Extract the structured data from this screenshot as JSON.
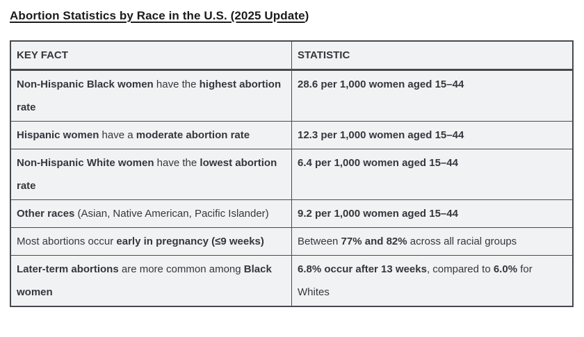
{
  "page": {
    "title_main": "Abortion Statistics by Race in the U.S. (2025 Update",
    "title_suffix": ")"
  },
  "colors": {
    "cell_background": "#f1f2f4",
    "border": "#47494d",
    "text": "#33373d",
    "title": "#1b1b1b"
  },
  "table": {
    "headers": [
      "KEY FACT",
      "STATISTIC"
    ],
    "rows": [
      {
        "fact": [
          {
            "text": "Non-Hispanic Black women",
            "bold": true
          },
          {
            "text": " have the ",
            "bold": false
          },
          {
            "text": "highest abortion rate",
            "bold": true
          }
        ],
        "stat": [
          {
            "text": "28.6 per 1,000 women aged 15–44",
            "bold": true
          }
        ]
      },
      {
        "fact": [
          {
            "text": "Hispanic women",
            "bold": true
          },
          {
            "text": " have a ",
            "bold": false
          },
          {
            "text": "moderate abortion rate",
            "bold": true
          }
        ],
        "stat": [
          {
            "text": "12.3 per 1,000 women aged 15–44",
            "bold": true
          }
        ]
      },
      {
        "fact": [
          {
            "text": "Non-Hispanic White women",
            "bold": true
          },
          {
            "text": " have the ",
            "bold": false
          },
          {
            "text": "lowest abortion rate",
            "bold": true
          }
        ],
        "stat": [
          {
            "text": "6.4 per 1,000 women aged 15–44",
            "bold": true
          }
        ]
      },
      {
        "fact": [
          {
            "text": "Other races",
            "bold": true
          },
          {
            "text": " (Asian, Native American, Pacific Islander)",
            "bold": false
          }
        ],
        "stat": [
          {
            "text": "9.2 per 1,000 women aged 15–44",
            "bold": true
          }
        ]
      },
      {
        "fact": [
          {
            "text": "Most abortions occur ",
            "bold": false
          },
          {
            "text": "early in pregnancy (≤9 weeks)",
            "bold": true
          }
        ],
        "stat": [
          {
            "text": "Between ",
            "bold": false
          },
          {
            "text": "77% and 82%",
            "bold": true
          },
          {
            "text": " across all racial groups",
            "bold": false
          }
        ]
      },
      {
        "fact": [
          {
            "text": "Later-term abortions",
            "bold": true
          },
          {
            "text": " are more common among ",
            "bold": false
          },
          {
            "text": "Black women",
            "bold": true
          }
        ],
        "stat": [
          {
            "text": "6.8% occur after 13 weeks",
            "bold": true
          },
          {
            "text": ", compared to ",
            "bold": false
          },
          {
            "text": "6.0%",
            "bold": true
          },
          {
            "text": " for Whites",
            "bold": false
          }
        ]
      }
    ]
  }
}
